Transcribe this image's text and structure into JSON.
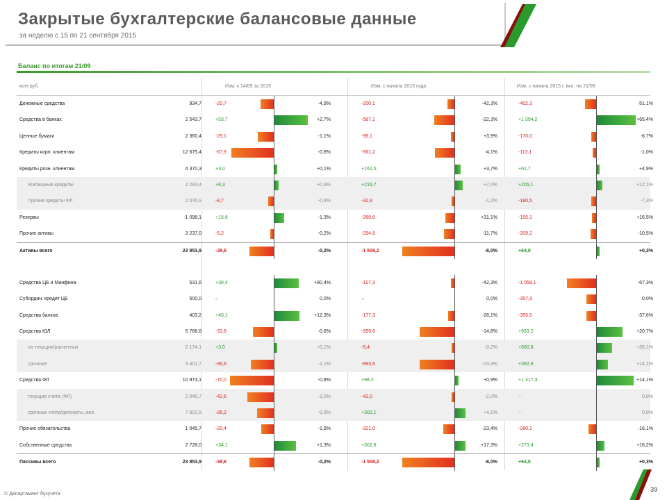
{
  "header": {
    "title": "Закрытые бухгалтерские балансовые данные",
    "subtitle": "за неделю с 15 по 21 сентября 2015"
  },
  "section_title": "Баланс по итогам 21/09",
  "columns": {
    "name": "млн руб.",
    "week": "Изм. к 14/09 за 2015",
    "month": "Изм. с начала 2015 года",
    "year": "Изм. с начала 2015 г. вкл. на 21/09"
  },
  "colors": {
    "negative": "#d42020",
    "positive": "#2a9a2a",
    "accent": "#3a9a2a"
  },
  "assets": [
    {
      "name": "Денежные средства",
      "value": "934,7",
      "d1": "-20,7",
      "p1": "-4,9%",
      "d2": "-200,1",
      "p2": "-42,3%",
      "d3": "-402,3",
      "p3": "-51,1%"
    },
    {
      "name": "Средства в банках",
      "value": "2 543,7",
      "d1": "+53,7",
      "p1": "+2,7%",
      "d2": "-587,1",
      "p2": "-22,3%",
      "d3": "+1 394,2",
      "p3": "+65,4%"
    },
    {
      "name": "Ценные бумаги",
      "value": "2 360,4",
      "d1": "-25,1",
      "p1": "-1,1%",
      "d2": "-98,1",
      "p2": "+3,9%",
      "d3": "-170,0",
      "p3": "-6,7%"
    },
    {
      "name": "Кредиты корп. клиентам",
      "value": "12 675,4",
      "d1": "-67,9",
      "p1": "-0,8%",
      "d2": "-561,2",
      "p2": "-4,1%",
      "d3": "-113,1",
      "p3": "-1,0%"
    },
    {
      "name": "Кредиты розн. клиентам",
      "value": "4 370,3",
      "d1": "+3,0",
      "p1": "+0,1%",
      "d2": "+162,6",
      "p2": "+3,7%",
      "d3": "+61,7",
      "p3": "+4,9%"
    },
    {
      "name": "Жилищные кредиты",
      "value": "2 293,4",
      "d1": "+6,3",
      "p1": "+0,3%",
      "d2": "+216,7",
      "p2": "+7,0%",
      "d3": "+205,1",
      "p3": "+12,1%",
      "sub": true
    },
    {
      "name": "Прочие кредиты ФЛ",
      "value": "2 076,9",
      "d1": "-8,7",
      "p1": "-0,4%",
      "d2": "-32,9",
      "p2": "-1,2%",
      "d3": "-180,5",
      "p3": "-7,3%",
      "sub": true
    },
    {
      "name": "Резервы",
      "value": "-1 098,1",
      "d1": "+15,6",
      "p1": "-1,3%",
      "d2": "-260,8",
      "p2": "+31,1%",
      "d3": "-155,1",
      "p3": "+16,5%"
    },
    {
      "name": "Прочие активы",
      "value": "3 237,0",
      "d1": "-5,2",
      "p1": "-0,2%",
      "d2": "-294,8",
      "p2": "-11,7%",
      "d3": "-209,2",
      "p3": "-10,5%"
    },
    {
      "name": "Активы всего",
      "value": "23 853,9",
      "d1": "-38,6",
      "p1": "-0,2%",
      "d2": "-1 506,2",
      "p2": "-6,0%",
      "d3": "+64,8",
      "p3": "+0,3%",
      "total": true
    }
  ],
  "liabilities": [
    {
      "name": "Средства ЦБ и Минфина",
      "value": "531,6",
      "d1": "+39,4",
      "p1": "+80,4%",
      "d2": "-107,3",
      "p2": "-42,3%",
      "d3": "-1 058,1",
      "p3": "-67,3%"
    },
    {
      "name": "Субордин. кредит ЦБ",
      "value": "500,0",
      "d1": "–",
      "p1": "0,0%",
      "d2": "–",
      "p2": "0,0%",
      "d3": "-357,9",
      "p3": "0,0%"
    },
    {
      "name": "Средства банков",
      "value": "403,2",
      "d1": "+40,1",
      "p1": "+12,3%",
      "d2": "-177,3",
      "p2": "-28,1%",
      "d3": "-355,5",
      "p3": "-37,6%"
    },
    {
      "name": "Средства ЮЛ",
      "value": "5 768,6",
      "d1": "-33,6",
      "p1": "-0,6%",
      "d2": "-999,6",
      "p2": "-14,8%",
      "d3": "+933,2",
      "p3": "+20,7%"
    },
    {
      "name": "на текущих/расчетных",
      "value": "2 174,1",
      "d1": "+3,0",
      "p1": "+0,1%",
      "d2": "-5,4",
      "p2": "-0,2%",
      "d3": "+560,8",
      "p3": "+35,1%",
      "sub": true
    },
    {
      "name": "срочные",
      "value": "3 401,7",
      "d1": "-36,6",
      "p1": "-1,1%",
      "d2": "-993,6",
      "p2": "-23,4%",
      "d3": "+392,8",
      "p3": "+14,1%",
      "sub": true
    },
    {
      "name": "Средства ФЛ",
      "value": "10 973,1",
      "d1": "-70,0",
      "p1": "-0,8%",
      "d2": "+98,2",
      "p2": "+0,9%",
      "d3": "+1 317,3",
      "p3": "+14,1%"
    },
    {
      "name": "текущие счета (ФЛ)",
      "value": "2 045,7",
      "d1": "-42,6",
      "p1": "-2,0%",
      "d2": "-42,0",
      "p2": "-2,0%",
      "d3": "–",
      "p3": "0,0%",
      "sub": true
    },
    {
      "name": "срочные счета/депозиты, вкл.",
      "value": "7 802,9",
      "d1": "-26,2",
      "p1": "-0,3%",
      "d2": "+302,1",
      "p2": "+4,1%",
      "d3": "–",
      "p3": "0,0%",
      "sub": true
    },
    {
      "name": "Прочие обязательства",
      "value": "1 045,7",
      "d1": "-20,4",
      "p1": "-1,9%",
      "d2": "-321,0",
      "p2": "-23,4%",
      "d3": "-280,1",
      "p3": "-16,1%"
    },
    {
      "name": "Собственные средства",
      "value": "2 728,0",
      "d1": "+34,1",
      "p1": "+1,3%",
      "d2": "+302,8",
      "p2": "+17,3%",
      "d3": "+273,4",
      "p3": "+16,2%"
    },
    {
      "name": "Пассивы всего",
      "value": "23 853,9",
      "d1": "-38,6",
      "p1": "-0,2%",
      "d2": "-1 506,2",
      "p2": "-6,0%",
      "d3": "+64,8",
      "p3": "+0,3%",
      "total": true
    }
  ],
  "footer": {
    "copyright": "© Департамент бухучета",
    "page": "39"
  }
}
